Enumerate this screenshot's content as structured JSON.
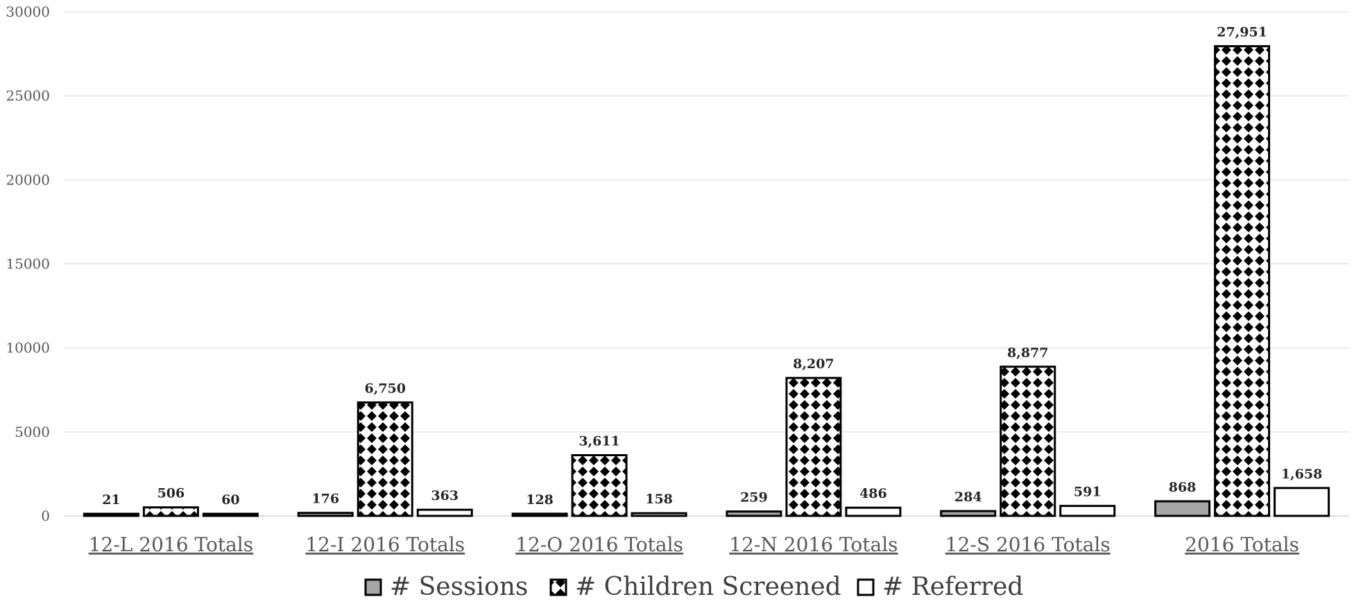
{
  "chart_data": {
    "type": "bar",
    "categories": [
      "12-L 2016 Totals",
      "12-I 2016 Totals",
      "12-O 2016 Totals",
      "12-N 2016 Totals",
      "12-S 2016 Totals",
      "2016 Totals"
    ],
    "series": [
      {
        "name": "# Sessions",
        "values": [
          21,
          176,
          128,
          259,
          284,
          868
        ],
        "labels": [
          "21",
          "176",
          "128",
          "259",
          "284",
          "868"
        ],
        "fill": "#a6a6a6",
        "pattern": "solid"
      },
      {
        "name": "# Children Screened",
        "values": [
          506,
          6750,
          3611,
          8207,
          8877,
          27951
        ],
        "labels": [
          "506",
          "6,750",
          "3,611",
          "8,207",
          "8,877",
          "27,951"
        ],
        "fill": "#000000",
        "pattern": "diamond"
      },
      {
        "name": "# Referred",
        "values": [
          60,
          363,
          158,
          486,
          591,
          1658
        ],
        "labels": [
          "60",
          "363",
          "158",
          "486",
          "591",
          "1,658"
        ],
        "fill": "#ffffff",
        "pattern": "solid"
      }
    ],
    "ylim": [
      0,
      30000
    ],
    "yticks": [
      "0",
      "5000",
      "10000",
      "15000",
      "20000",
      "25000",
      "30000"
    ],
    "grid": true,
    "legend_position": "bottom",
    "title": "",
    "xlabel": "",
    "ylabel": ""
  }
}
